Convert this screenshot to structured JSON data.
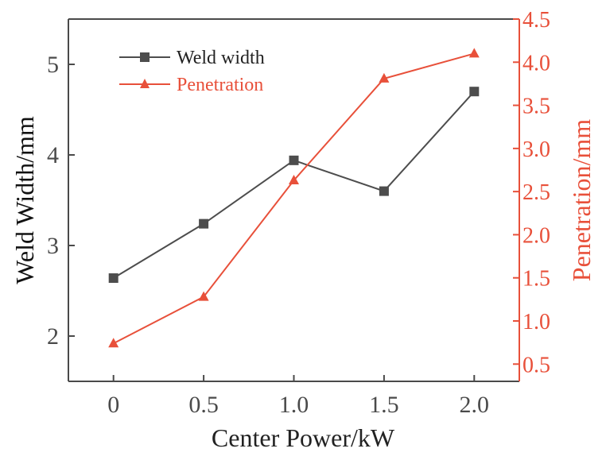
{
  "chart_data": {
    "type": "line",
    "title": "",
    "xlabel": "Center Power/kW",
    "ylabel_left": "Weld Width/mm",
    "ylabel_right": "Penetration/mm",
    "x": [
      0,
      0.5,
      1.0,
      1.5,
      2.0
    ],
    "x_tick_labels": [
      "0",
      "0.5",
      "1.0",
      "1.5",
      "2.0"
    ],
    "xlim": [
      -0.25,
      2.25
    ],
    "ylim_left": [
      1.5,
      5.5
    ],
    "y_left_ticks": [
      "2",
      "3",
      "4",
      "5"
    ],
    "ylim_right": [
      0.3,
      4.5
    ],
    "y_right_ticks": [
      "0.5",
      "1.0",
      "1.5",
      "2.0",
      "2.5",
      "3.0",
      "3.5",
      "4.0",
      "4.5"
    ],
    "legend_position": "top-left",
    "series": [
      {
        "name": "Weld width",
        "axis": "left",
        "marker": "square",
        "color": "#4d4d4d",
        "values": [
          2.64,
          3.24,
          3.94,
          3.6,
          4.7
        ]
      },
      {
        "name": "Penetration",
        "axis": "right",
        "marker": "triangle",
        "color": "#e8503a",
        "values": [
          0.74,
          1.28,
          2.63,
          3.81,
          4.1
        ]
      }
    ]
  }
}
